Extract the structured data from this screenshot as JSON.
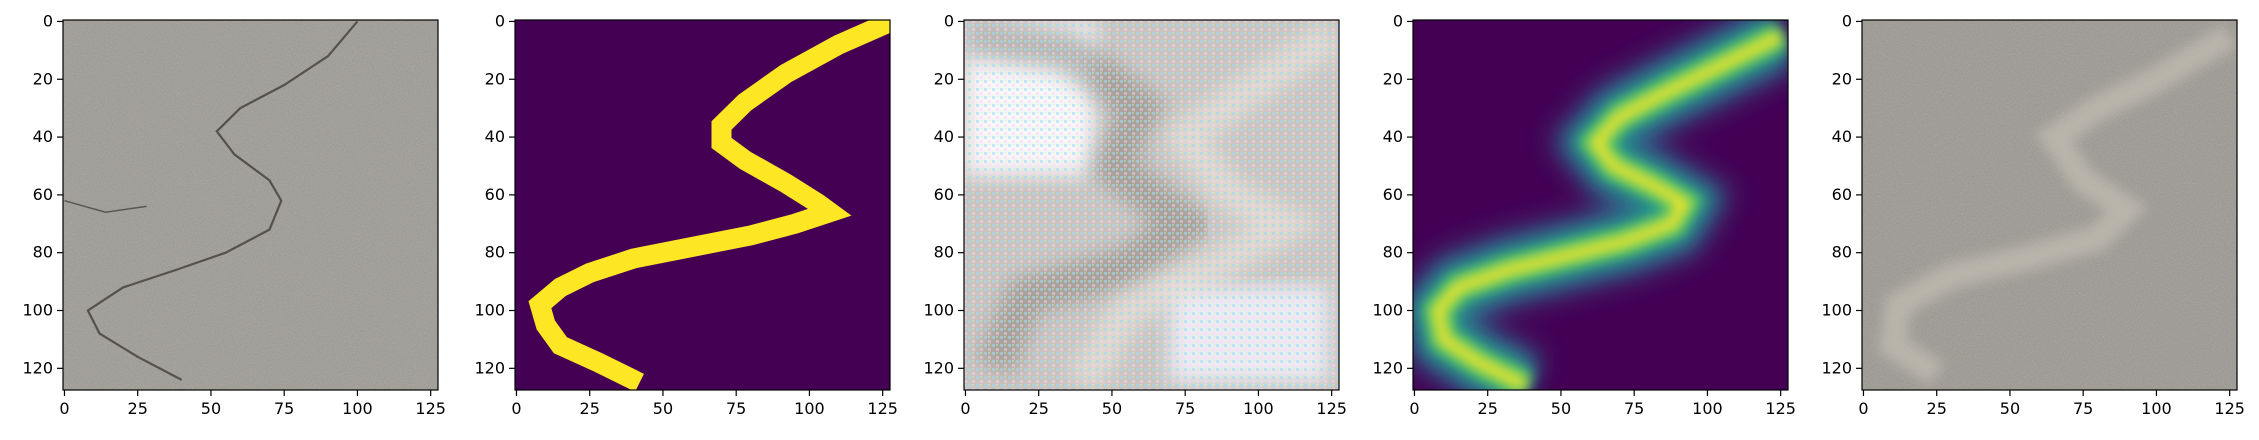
{
  "chart_data": [
    {
      "type": "image",
      "panel": "crack-photo",
      "image_size": [
        128,
        128
      ],
      "x_ticks": [
        0,
        25,
        50,
        75,
        100,
        125
      ],
      "y_ticks": [
        0,
        20,
        40,
        60,
        80,
        100,
        120
      ],
      "xlim": [
        -0.5,
        127.5
      ],
      "ylim": [
        127.5,
        -0.5
      ],
      "content": "grayscale concrete texture with dark thin crack"
    },
    {
      "type": "image",
      "panel": "ground-truth-mask",
      "image_size": [
        128,
        128
      ],
      "x_ticks": [
        0,
        25,
        50,
        75,
        100,
        125
      ],
      "y_ticks": [
        0,
        20,
        40,
        60,
        80,
        100,
        120
      ],
      "xlim": [
        -0.5,
        127.5
      ],
      "ylim": [
        127.5,
        -0.5
      ],
      "colors": {
        "background": "#440154",
        "foreground": "#fde725"
      },
      "crack_path": [
        [
          128,
          0
        ],
        [
          110,
          8
        ],
        [
          92,
          18
        ],
        [
          78,
          28
        ],
        [
          70,
          36
        ],
        [
          70,
          42
        ],
        [
          78,
          48
        ],
        [
          92,
          56
        ],
        [
          103,
          63
        ],
        [
          107,
          66
        ],
        [
          95,
          70
        ],
        [
          80,
          74
        ],
        [
          60,
          78
        ],
        [
          40,
          82
        ],
        [
          25,
          87
        ],
        [
          15,
          92
        ],
        [
          8,
          98
        ],
        [
          10,
          105
        ],
        [
          15,
          112
        ],
        [
          28,
          118
        ],
        [
          42,
          125
        ]
      ]
    },
    {
      "type": "image",
      "panel": "generated-image",
      "image_size": [
        128,
        128
      ],
      "x_ticks": [
        0,
        25,
        50,
        75,
        100,
        125
      ],
      "y_ticks": [
        0,
        20,
        40,
        60,
        80,
        100,
        120
      ],
      "xlim": [
        -0.5,
        127.5
      ],
      "ylim": [
        127.5,
        -0.5
      ],
      "content": "noisy pastel reconstruction with checkerboard artifacts"
    },
    {
      "type": "heatmap",
      "panel": "predicted-map",
      "image_size": [
        128,
        128
      ],
      "x_ticks": [
        0,
        25,
        50,
        75,
        100,
        125
      ],
      "y_ticks": [
        0,
        20,
        40,
        60,
        80,
        100,
        120
      ],
      "xlim": [
        -0.5,
        127.5
      ],
      "ylim": [
        127.5,
        -0.5
      ],
      "colormap": "viridis",
      "crack_path": [
        [
          125,
          5
        ],
        [
          105,
          15
        ],
        [
          85,
          25
        ],
        [
          70,
          33
        ],
        [
          62,
          42
        ],
        [
          68,
          50
        ],
        [
          82,
          57
        ],
        [
          92,
          63
        ],
        [
          88,
          70
        ],
        [
          72,
          76
        ],
        [
          52,
          81
        ],
        [
          32,
          86
        ],
        [
          15,
          92
        ],
        [
          8,
          100
        ],
        [
          10,
          110
        ],
        [
          22,
          118
        ],
        [
          38,
          126
        ]
      ]
    },
    {
      "type": "image",
      "panel": "overlay-image",
      "image_size": [
        128,
        128
      ],
      "x_ticks": [
        0,
        25,
        50,
        75,
        100,
        125
      ],
      "y_ticks": [
        0,
        20,
        40,
        60,
        80,
        100,
        120
      ],
      "xlim": [
        -0.5,
        127.5
      ],
      "ylim": [
        127.5,
        -0.5
      ],
      "content": "concrete texture with faint light crack band"
    }
  ]
}
